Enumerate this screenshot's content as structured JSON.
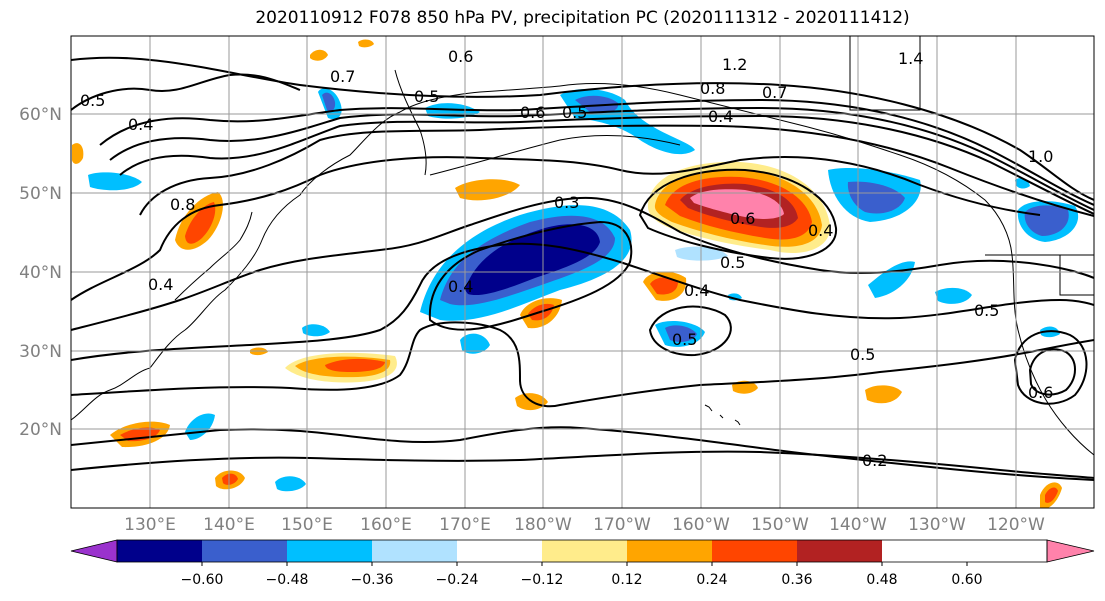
{
  "title": "2020110912 F078 850 hPa PV, precipitation PC (2020111312 - 2020111412)",
  "lat_labels": [
    "60°N",
    "50°N",
    "40°N",
    "30°N",
    "20°N"
  ],
  "lon_labels": [
    "130°E",
    "140°E",
    "150°E",
    "160°E",
    "170°E",
    "180°W",
    "170°W",
    "160°W",
    "150°W",
    "140°W",
    "130°W",
    "120°W"
  ],
  "contour_labels": [
    "0.5",
    "0.6",
    "0.7",
    "0.6",
    "0.5",
    "1.2",
    "0.8",
    "0.7",
    "1.4",
    "1.0",
    "0.4",
    "0.8",
    "0.4",
    "0.3",
    "0.4",
    "0.5",
    "0.4",
    "0.5",
    "0.6",
    "0.4",
    "0.5",
    "0.5",
    "0.5",
    "0.6",
    "0.2",
    "0.4"
  ],
  "colorbar": {
    "colors": [
      "#9a32cd",
      "#00008b",
      "#3a5fcd",
      "#00bfff",
      "#b0e2ff",
      "#ffffff",
      "#ffec8b",
      "#ffa500",
      "#ff4500",
      "#b22222",
      "#ff82ab"
    ],
    "ticks": [
      "−0.60",
      "−0.48",
      "−0.36",
      "−0.24",
      "−0.12",
      "0.12",
      "0.24",
      "0.36",
      "0.48",
      "0.60"
    ]
  },
  "legend_colors": {
    "neg_strong": "#00008b",
    "neg_mid": "#3a5fcd",
    "neg_light": "#00bfff",
    "pos_light": "#ffec8b",
    "pos_mid": "#ffa500",
    "pos_strong": "#ff4500",
    "pos_deep": "#b22222",
    "pos_max": "#ff82ab"
  }
}
